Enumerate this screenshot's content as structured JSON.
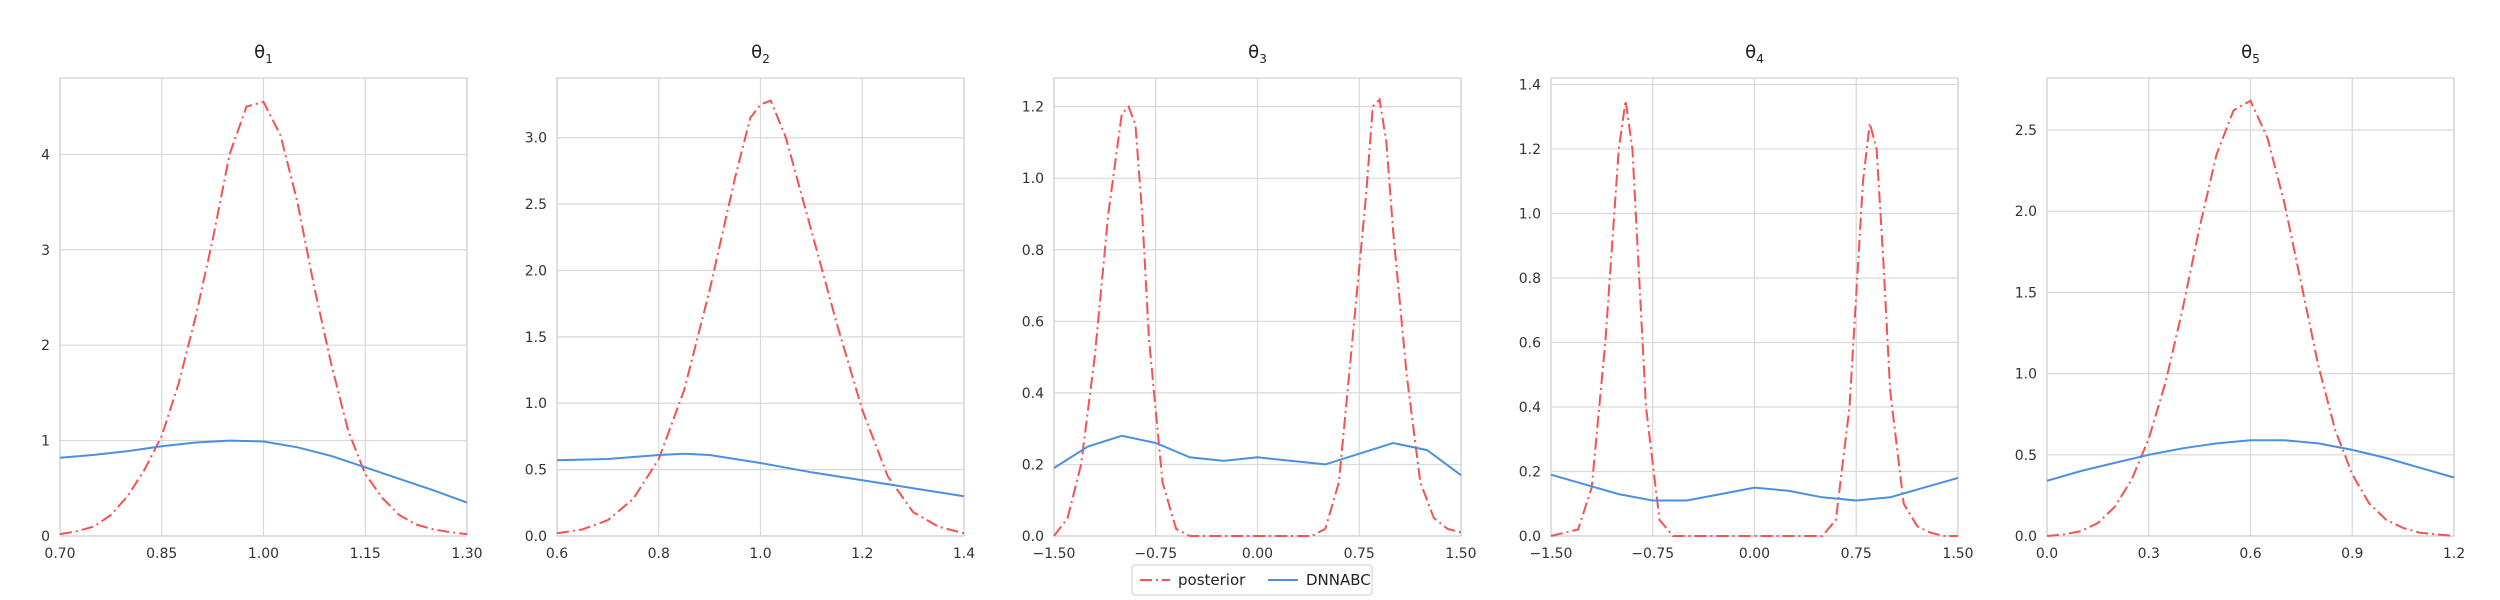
{
  "legend": {
    "entries": [
      {
        "label": "posterior",
        "color": "#f4534f",
        "style": "dashdot"
      },
      {
        "label": "DNNABC",
        "color": "#4a90e2",
        "style": "solid"
      }
    ],
    "placement": "bottom-center"
  },
  "chart_data": [
    {
      "type": "line",
      "title": "θ",
      "title_sub": "1",
      "xlim": [
        0.7,
        1.3
      ],
      "ylim": [
        0,
        4.8
      ],
      "xticks": [
        0.7,
        0.85,
        1.0,
        1.15,
        1.3
      ],
      "xtick_labels": [
        "0.70",
        "0.85",
        "1.00",
        "1.15",
        "1.30"
      ],
      "yticks": [
        0,
        1,
        2,
        3,
        4
      ],
      "ytick_labels": [
        "0",
        "1",
        "2",
        "3",
        "4"
      ],
      "grid": true,
      "series": [
        {
          "name": "posterior",
          "x": [
            0.7,
            0.725,
            0.75,
            0.775,
            0.8,
            0.825,
            0.85,
            0.875,
            0.9,
            0.925,
            0.95,
            0.975,
            1.0,
            1.025,
            1.05,
            1.075,
            1.1,
            1.125,
            1.15,
            1.175,
            1.2,
            1.225,
            1.25,
            1.275,
            1.3
          ],
          "y": [
            0.02,
            0.05,
            0.1,
            0.22,
            0.42,
            0.7,
            1.05,
            1.6,
            2.3,
            3.1,
            4.0,
            4.5,
            4.55,
            4.2,
            3.5,
            2.6,
            1.8,
            1.1,
            0.65,
            0.4,
            0.22,
            0.12,
            0.07,
            0.04,
            0.02
          ]
        },
        {
          "name": "DNNABC",
          "x": [
            0.7,
            0.75,
            0.8,
            0.85,
            0.9,
            0.95,
            1.0,
            1.05,
            1.1,
            1.15,
            1.2,
            1.25,
            1.3
          ],
          "y": [
            0.82,
            0.85,
            0.89,
            0.94,
            0.98,
            1.0,
            0.99,
            0.93,
            0.84,
            0.72,
            0.6,
            0.48,
            0.35
          ]
        }
      ]
    },
    {
      "type": "line",
      "title": "θ",
      "title_sub": "2",
      "xlim": [
        0.6,
        1.4
      ],
      "ylim": [
        0,
        3.45
      ],
      "xticks": [
        0.6,
        0.8,
        1.0,
        1.2,
        1.4
      ],
      "xtick_labels": [
        "0.6",
        "0.8",
        "1.0",
        "1.2",
        "1.4"
      ],
      "yticks": [
        0,
        0.5,
        1.0,
        1.5,
        2.0,
        2.5,
        3.0
      ],
      "ytick_labels": [
        "0.0",
        "0.5",
        "1.0",
        "1.5",
        "2.0",
        "2.5",
        "3.0"
      ],
      "grid": true,
      "series": [
        {
          "name": "posterior",
          "x": [
            0.6,
            0.65,
            0.7,
            0.75,
            0.8,
            0.85,
            0.9,
            0.95,
            0.98,
            1.0,
            1.02,
            1.05,
            1.1,
            1.15,
            1.2,
            1.25,
            1.3,
            1.35,
            1.4
          ],
          "y": [
            0.02,
            0.05,
            0.12,
            0.28,
            0.58,
            1.1,
            1.85,
            2.7,
            3.15,
            3.25,
            3.28,
            3.0,
            2.3,
            1.6,
            0.95,
            0.45,
            0.18,
            0.07,
            0.02
          ]
        },
        {
          "name": "DNNABC",
          "x": [
            0.6,
            0.7,
            0.8,
            0.85,
            0.9,
            1.0,
            1.1,
            1.2,
            1.3,
            1.4
          ],
          "y": [
            0.57,
            0.58,
            0.61,
            0.62,
            0.61,
            0.55,
            0.48,
            0.42,
            0.36,
            0.3
          ]
        }
      ]
    },
    {
      "type": "line",
      "title": "θ",
      "title_sub": "3",
      "xlim": [
        -1.5,
        1.5
      ],
      "ylim": [
        0,
        1.28
      ],
      "xticks": [
        -1.5,
        -0.75,
        0.0,
        0.75,
        1.5
      ],
      "xtick_labels": [
        "−1.50",
        "−0.75",
        "0.00",
        "0.75",
        "1.50"
      ],
      "yticks": [
        0,
        0.2,
        0.4,
        0.6,
        0.8,
        1.0,
        1.2
      ],
      "ytick_labels": [
        "0.0",
        "0.2",
        "0.4",
        "0.6",
        "0.8",
        "1.0",
        "1.2"
      ],
      "grid": true,
      "series": [
        {
          "name": "posterior",
          "x": [
            -1.5,
            -1.4,
            -1.3,
            -1.2,
            -1.1,
            -1.0,
            -0.95,
            -0.9,
            -0.85,
            -0.8,
            -0.7,
            -0.6,
            -0.5,
            -0.4,
            -0.2,
            0.0,
            0.2,
            0.4,
            0.5,
            0.6,
            0.7,
            0.8,
            0.85,
            0.9,
            0.95,
            1.0,
            1.1,
            1.2,
            1.3,
            1.4,
            1.5
          ],
          "y": [
            0.0,
            0.05,
            0.2,
            0.5,
            0.9,
            1.18,
            1.2,
            1.15,
            0.9,
            0.55,
            0.15,
            0.02,
            0.0,
            0.0,
            0.0,
            0.0,
            0.0,
            0.0,
            0.02,
            0.15,
            0.55,
            0.95,
            1.2,
            1.22,
            1.1,
            0.85,
            0.45,
            0.15,
            0.05,
            0.02,
            0.01
          ]
        },
        {
          "name": "DNNABC",
          "x": [
            -1.5,
            -1.25,
            -1.0,
            -0.75,
            -0.5,
            -0.25,
            0.0,
            0.25,
            0.5,
            0.75,
            1.0,
            1.25,
            1.5
          ],
          "y": [
            0.19,
            0.25,
            0.28,
            0.26,
            0.22,
            0.21,
            0.22,
            0.21,
            0.2,
            0.23,
            0.26,
            0.24,
            0.17
          ]
        }
      ]
    },
    {
      "type": "line",
      "title": "θ",
      "title_sub": "4",
      "xlim": [
        -1.5,
        1.5
      ],
      "ylim": [
        0,
        1.42
      ],
      "xticks": [
        -1.5,
        -0.75,
        0.0,
        0.75,
        1.5
      ],
      "xtick_labels": [
        "−1.50",
        "−0.75",
        "0.00",
        "0.75",
        "1.50"
      ],
      "yticks": [
        0,
        0.2,
        0.4,
        0.6,
        0.8,
        1.0,
        1.2,
        1.4
      ],
      "ytick_labels": [
        "0.0",
        "0.2",
        "0.4",
        "0.6",
        "0.8",
        "1.0",
        "1.2",
        "1.4"
      ],
      "grid": true,
      "series": [
        {
          "name": "posterior",
          "x": [
            -1.5,
            -1.3,
            -1.2,
            -1.1,
            -1.0,
            -0.95,
            -0.9,
            -0.85,
            -0.8,
            -0.7,
            -0.6,
            -0.5,
            -0.3,
            0.0,
            0.3,
            0.5,
            0.6,
            0.7,
            0.8,
            0.85,
            0.9,
            0.95,
            1.0,
            1.1,
            1.2,
            1.3,
            1.4,
            1.5
          ],
          "y": [
            0.0,
            0.02,
            0.15,
            0.6,
            1.2,
            1.35,
            1.2,
            0.8,
            0.4,
            0.05,
            0.0,
            0.0,
            0.0,
            0.0,
            0.0,
            0.0,
            0.05,
            0.4,
            1.1,
            1.28,
            1.2,
            0.85,
            0.45,
            0.1,
            0.03,
            0.01,
            0.0,
            0.0
          ]
        },
        {
          "name": "DNNABC",
          "x": [
            -1.5,
            -1.25,
            -1.0,
            -0.75,
            -0.5,
            -0.25,
            0.0,
            0.25,
            0.5,
            0.75,
            1.0,
            1.25,
            1.5
          ],
          "y": [
            0.19,
            0.16,
            0.13,
            0.11,
            0.11,
            0.13,
            0.15,
            0.14,
            0.12,
            0.11,
            0.12,
            0.15,
            0.18
          ]
        }
      ]
    },
    {
      "type": "line",
      "title": "θ",
      "title_sub": "5",
      "xlim": [
        0.0,
        1.2
      ],
      "ylim": [
        0,
        2.82
      ],
      "xticks": [
        0.0,
        0.3,
        0.6,
        0.9,
        1.2
      ],
      "xtick_labels": [
        "0.0",
        "0.3",
        "0.6",
        "0.9",
        "1.2"
      ],
      "yticks": [
        0,
        0.5,
        1.0,
        1.5,
        2.0,
        2.5
      ],
      "ytick_labels": [
        "0.0",
        "0.5",
        "1.0",
        "1.5",
        "2.0",
        "2.5"
      ],
      "grid": true,
      "series": [
        {
          "name": "posterior",
          "x": [
            0.0,
            0.05,
            0.1,
            0.15,
            0.2,
            0.25,
            0.3,
            0.35,
            0.4,
            0.45,
            0.5,
            0.55,
            0.6,
            0.65,
            0.7,
            0.75,
            0.8,
            0.85,
            0.9,
            0.95,
            1.0,
            1.05,
            1.1,
            1.15,
            1.2
          ],
          "y": [
            0.0,
            0.01,
            0.03,
            0.08,
            0.18,
            0.35,
            0.6,
            0.95,
            1.4,
            1.9,
            2.35,
            2.62,
            2.68,
            2.45,
            2.05,
            1.55,
            1.05,
            0.65,
            0.38,
            0.2,
            0.1,
            0.05,
            0.02,
            0.01,
            0.0
          ]
        },
        {
          "name": "DNNABC",
          "x": [
            0.0,
            0.1,
            0.2,
            0.3,
            0.4,
            0.5,
            0.6,
            0.7,
            0.8,
            0.9,
            1.0,
            1.1,
            1.2
          ],
          "y": [
            0.34,
            0.4,
            0.45,
            0.5,
            0.54,
            0.57,
            0.59,
            0.59,
            0.57,
            0.53,
            0.48,
            0.42,
            0.36
          ]
        }
      ]
    }
  ]
}
